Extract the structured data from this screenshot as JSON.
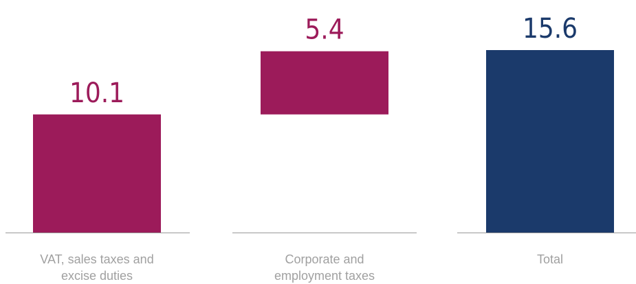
{
  "chart_data": {
    "type": "waterfall",
    "categories": [
      "VAT, sales taxes and excise duties",
      "Corporate and employment taxes",
      "Total"
    ],
    "values": [
      10.1,
      5.4,
      15.6
    ],
    "is_total": [
      false,
      false,
      true
    ],
    "colors": [
      "#9c1b5a",
      "#9c1b5a",
      "#1b3a6b"
    ]
  }
}
